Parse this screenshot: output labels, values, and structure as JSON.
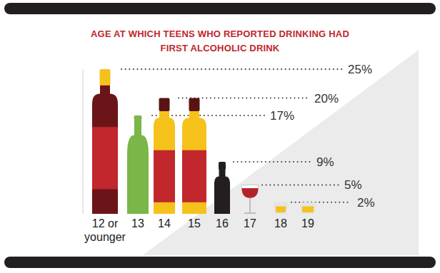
{
  "chart_data": {
    "type": "bar",
    "title": "AGE AT WHICH TEENS WHO REPORTED DRINKING HAD FIRST ALCOHOLIC DRINK",
    "categories": [
      "12 or younger",
      "13",
      "14",
      "15",
      "16",
      "17",
      "18",
      "19"
    ],
    "values": [
      25,
      17,
      20,
      20,
      9,
      5,
      2,
      2
    ],
    "colors": [
      "#6b1518",
      "#7ab648",
      "#f5c21b",
      "#f5c21b",
      "#231f20",
      "#b5232a",
      "#f5c21b",
      "#f5c21b"
    ],
    "ylim": [
      0,
      25
    ],
    "yticks": [
      {
        "value": 25,
        "label": "25%"
      },
      {
        "value": 20,
        "label": "20%"
      },
      {
        "value": 17,
        "label": "17%"
      },
      {
        "value": 9,
        "label": "9%"
      },
      {
        "value": 5,
        "label": "5%"
      },
      {
        "value": 2,
        "label": "2%"
      }
    ],
    "grid": true
  }
}
